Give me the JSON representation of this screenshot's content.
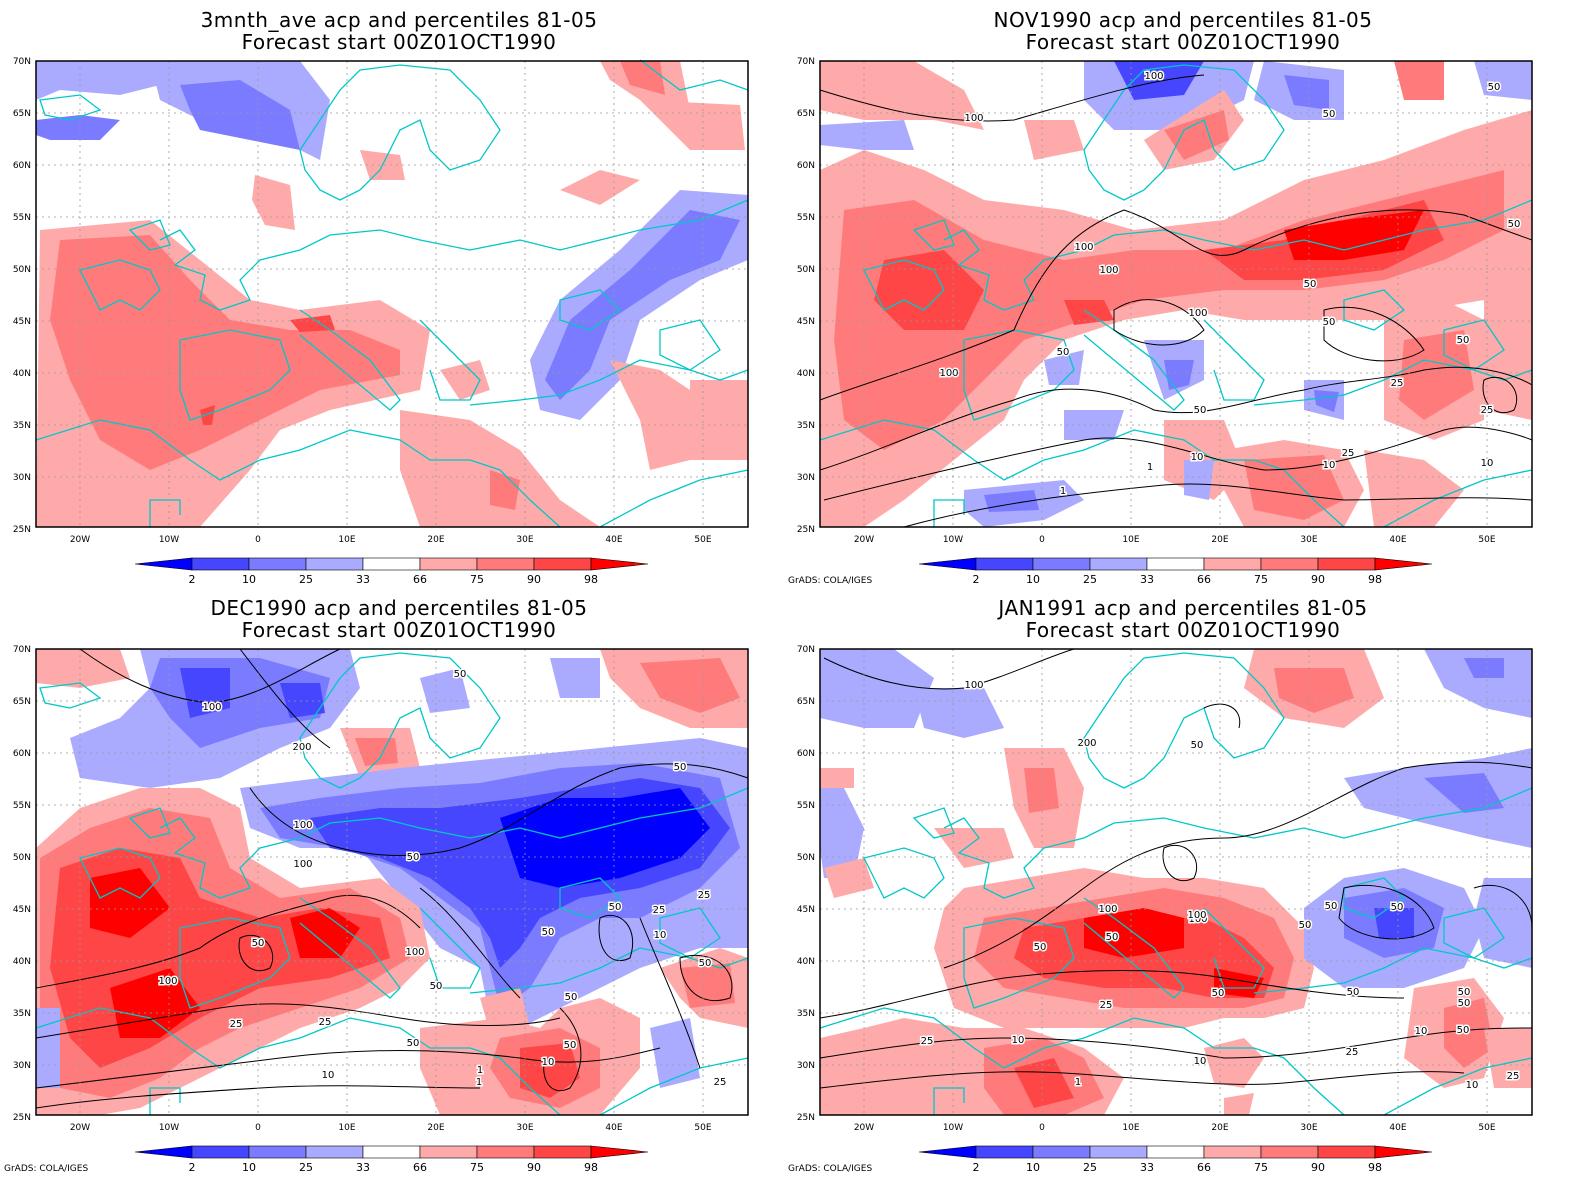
{
  "panels": [
    {
      "title_line1": "3mnth_ave acp and percentiles 81-05",
      "title_line2": "Forecast start 00Z01OCT1990",
      "credit": "",
      "contour_labels": []
    },
    {
      "title_line1": "NOV1990 acp and percentiles 81-05",
      "title_line2": "Forecast start 00Z01OCT1990",
      "credit": "GrADS: COLA/IGES",
      "contour_labels": [
        "100",
        "100",
        "100",
        "100",
        "100",
        "100",
        "50",
        "50",
        "50",
        "50",
        "50",
        "50",
        "50",
        "50",
        "25",
        "25",
        "25",
        "10",
        "10",
        "10",
        "1",
        "1"
      ]
    },
    {
      "title_line1": "DEC1990 acp and percentiles 81-05",
      "title_line2": "Forecast start 00Z01OCT1990",
      "credit": "GrADS: COLA/IGES",
      "contour_labels": [
        "100",
        "200",
        "100",
        "100",
        "50",
        "50",
        "50",
        "50",
        "50",
        "50",
        "50",
        "25",
        "25",
        "25",
        "50",
        "50",
        "100",
        "100",
        "50",
        "25",
        "10",
        "1",
        "10",
        "10",
        "25",
        "1",
        "50"
      ]
    },
    {
      "title_line1": "JAN1991 acp and percentiles 81-05",
      "title_line2": "Forecast start 00Z01OCT1990",
      "credit": "GrADS: COLA/IGES",
      "contour_labels": [
        "100",
        "200",
        "50",
        "100",
        "50",
        "50",
        "100",
        "100",
        "50",
        "50",
        "50",
        "50",
        "50",
        "25",
        "25",
        "25",
        "10",
        "10",
        "10",
        "1",
        "50",
        "50",
        "50",
        "10",
        "25"
      ]
    }
  ],
  "lat_labels": [
    "70N",
    "65N",
    "60N",
    "55N",
    "50N",
    "45N",
    "40N",
    "35N",
    "30N",
    "25N"
  ],
  "lon_labels": [
    "20W",
    "10W",
    "0",
    "10E",
    "20E",
    "30E",
    "40E",
    "50E"
  ],
  "colorbar": {
    "labels": [
      "2",
      "10",
      "25",
      "33",
      "66",
      "75",
      "90",
      "98"
    ],
    "colors": [
      "#0000ff",
      "#4646ff",
      "#7b7bff",
      "#aaaaff",
      "#ffffff",
      "#ffaaaa",
      "#ff7b7b",
      "#ff4646",
      "#ff0000"
    ]
  },
  "colors": {
    "coast": "#00c8c8",
    "contour": "#000000",
    "grid": "#888888"
  }
}
